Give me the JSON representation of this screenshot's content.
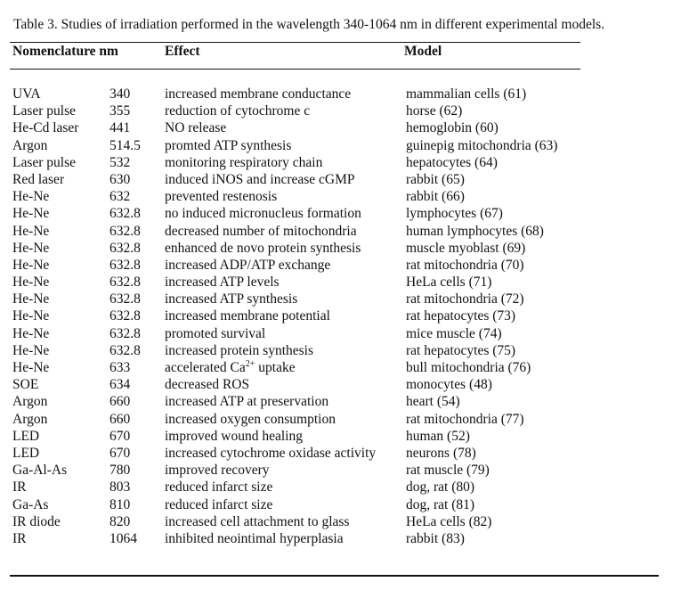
{
  "caption": "Table 3. Studies of irradiation performed in the wavelength 340-1064 nm in different experimental models.",
  "headers": {
    "nomenclature": "Nomenclature nm",
    "effect": "Effect",
    "model": "Model"
  },
  "rows": [
    {
      "nomenclature": "UVA",
      "nm": "340",
      "effect": "increased membrane conductance",
      "model": "mammalian cells (61)"
    },
    {
      "nomenclature": "Laser pulse",
      "nm": "355",
      "effect": "reduction of cytochrome c",
      "model": "horse (62)"
    },
    {
      "nomenclature": "He-Cd laser",
      "nm": "441",
      "effect": "NO release",
      "model": "hemoglobin (60)"
    },
    {
      "nomenclature": "Argon",
      "nm": "514.5",
      "effect": "promted ATP synthesis",
      "model": "guinepig mitochondria (63)"
    },
    {
      "nomenclature": "Laser pulse",
      "nm": "532",
      "effect": "monitoring respiratory chain",
      "model": "hepatocytes (64)"
    },
    {
      "nomenclature": "Red laser",
      "nm": "630",
      "effect": "induced iNOS and increase cGMP",
      "model": "rabbit (65)"
    },
    {
      "nomenclature": "He-Ne",
      "nm": "632",
      "effect": "prevented restenosis",
      "model": "rabbit (66)"
    },
    {
      "nomenclature": "He-Ne",
      "nm": "632.8",
      "effect": "no induced micronucleus formation",
      "model": "lymphocytes (67)"
    },
    {
      "nomenclature": "He-Ne",
      "nm": "632.8",
      "effect": "decreased number of mitochondria",
      "model": "human lymphocytes (68)"
    },
    {
      "nomenclature": "He-Ne",
      "nm": "632.8",
      "effect": "enhanced de novo protein synthesis",
      "model": "muscle myoblast (69)"
    },
    {
      "nomenclature": "He-Ne",
      "nm": "632.8",
      "effect": "increased ADP/ATP exchange",
      "model": "rat mitochondria (70)"
    },
    {
      "nomenclature": "He-Ne",
      "nm": "632.8",
      "effect": "increased ATP levels",
      "model": "HeLa cells (71)"
    },
    {
      "nomenclature": "He-Ne",
      "nm": "632.8",
      "effect": "increased ATP synthesis",
      "model": "rat mitochondria (72)"
    },
    {
      "nomenclature": "He-Ne",
      "nm": "632.8",
      "effect": "increased membrane potential",
      "model": "rat hepatocytes (73)"
    },
    {
      "nomenclature": "He-Ne",
      "nm": "632.8",
      "effect": "promoted survival",
      "model": "mice muscle (74)"
    },
    {
      "nomenclature": "He-Ne",
      "nm": "632.8",
      "effect": "increased protein synthesis",
      "model": "rat hepatocytes (75)"
    },
    {
      "nomenclature": "He-Ne",
      "nm": "633",
      "effect_prefix": "accelerated Ca",
      "effect_sup": "2+",
      "effect_suffix": " uptake",
      "model": "bull mitochondria (76)"
    },
    {
      "nomenclature": "SOE",
      "nm": "634",
      "effect": "decreased ROS",
      "model": "monocytes (48)"
    },
    {
      "nomenclature": "Argon",
      "nm": "660",
      "effect": "increased ATP at preservation",
      "model": "heart (54)"
    },
    {
      "nomenclature": "Argon",
      "nm": "660",
      "effect": "increased oxygen consumption",
      "model": "rat mitochondria (77)"
    },
    {
      "nomenclature": "LED",
      "nm": "670",
      "effect": "improved wound healing",
      "model": "human (52)"
    },
    {
      "nomenclature": "LED",
      "nm": "670",
      "effect": "increased cytochrome oxidase activity",
      "model": "neurons (78)"
    },
    {
      "nomenclature": "Ga-Al-As",
      "nm": "780",
      "effect": "improved recovery",
      "model": "rat muscle (79)"
    },
    {
      "nomenclature": "IR",
      "nm": "803",
      "effect": "reduced infarct size",
      "model": "dog, rat (80)"
    },
    {
      "nomenclature": "Ga-As",
      "nm": "810",
      "effect": "reduced infarct size",
      "model": "dog, rat (81)"
    },
    {
      "nomenclature": "IR diode",
      "nm": "820",
      "effect": "increased cell attachment to glass",
      "model": "HeLa cells (82)"
    },
    {
      "nomenclature": "IR",
      "nm": "1064",
      "effect": "inhibited neointimal hyperplasia",
      "model": "rabbit (83)"
    }
  ]
}
